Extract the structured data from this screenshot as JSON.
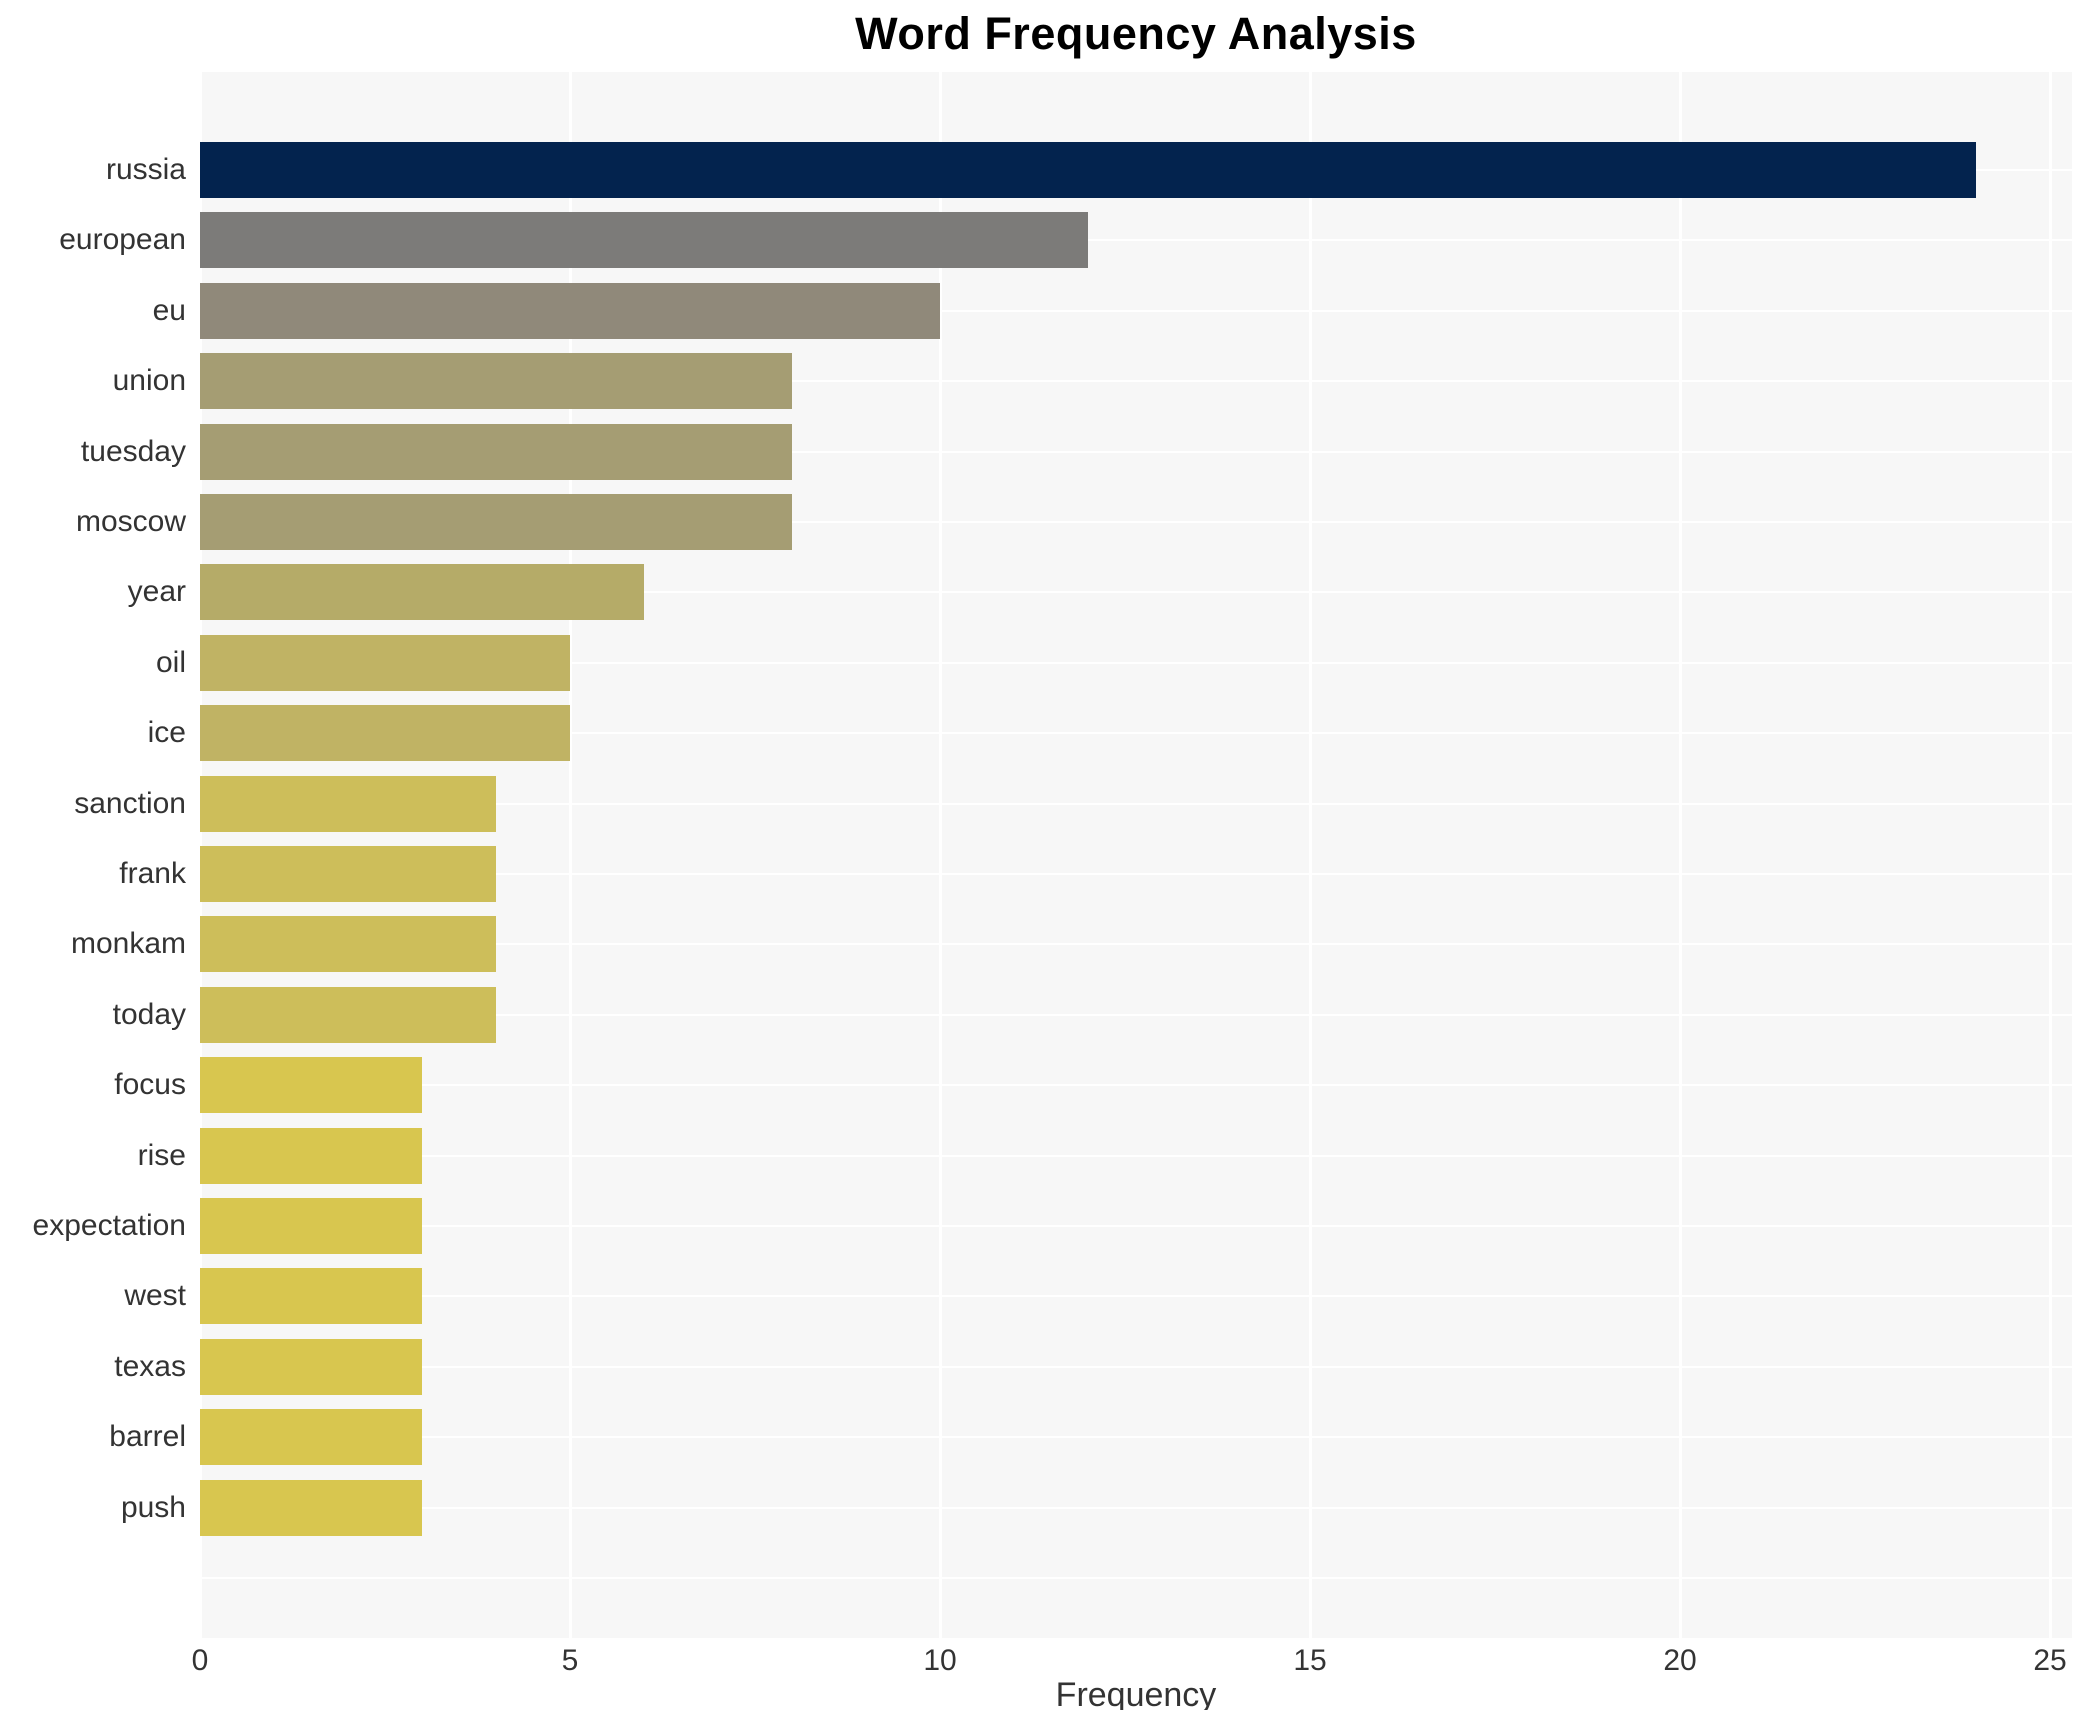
{
  "chart_data": {
    "type": "bar",
    "orientation": "horizontal",
    "title": "Word Frequency Analysis",
    "xlabel": "Frequency",
    "ylabel": "",
    "xlim": [
      0,
      25
    ],
    "xticks": [
      0,
      5,
      10,
      15,
      20,
      25
    ],
    "grid": true,
    "legend": false,
    "categories": [
      "russia",
      "european",
      "eu",
      "union",
      "tuesday",
      "moscow",
      "year",
      "oil",
      "ice",
      "sanction",
      "frank",
      "monkam",
      "today",
      "focus",
      "rise",
      "expectation",
      "west",
      "texas",
      "barrel",
      "push"
    ],
    "values": [
      24,
      12,
      10,
      8,
      8,
      8,
      6,
      5,
      5,
      4,
      4,
      4,
      4,
      3,
      3,
      3,
      3,
      3,
      3,
      3
    ],
    "bar_colors": [
      "#03234e",
      "#7c7b79",
      "#90897a",
      "#a59d73",
      "#a59d73",
      "#a59d73",
      "#b5ab68",
      "#c0b364",
      "#c0b364",
      "#cdbe5a",
      "#cdbe5a",
      "#cdbe5a",
      "#cdbe5a",
      "#d8c64f",
      "#d8c64f",
      "#d8c64f",
      "#d8c64f",
      "#d8c64f",
      "#d8c64f",
      "#d8c64f"
    ],
    "style": {
      "panel_bg": "#f7f7f7",
      "grid_color": "#ffffff",
      "text_color": "#333333",
      "title_color": "#000000",
      "page_bg": "#ffffff"
    }
  }
}
